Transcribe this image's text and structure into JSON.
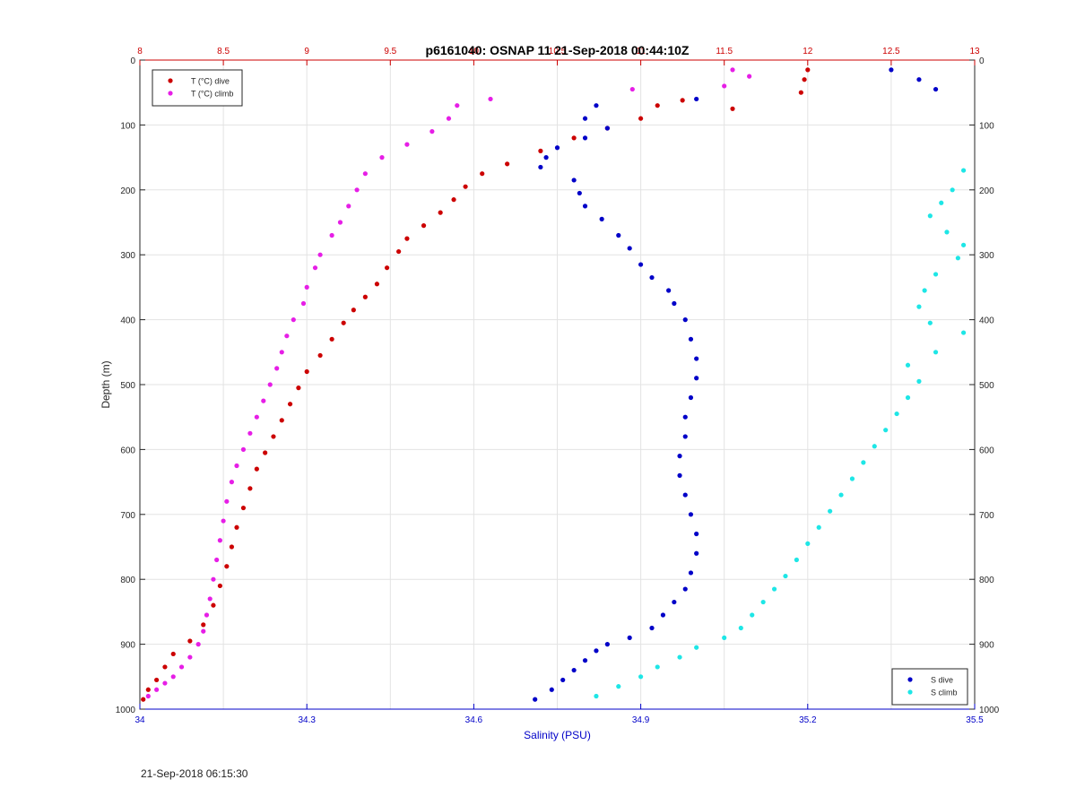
{
  "chart_data": {
    "type": "scatter",
    "title": "p6161040: OSNAP 11 21-Sep-2018 00:44:10Z",
    "ylabel": "Depth (m)",
    "xlabel_bottom": "Salinity (PSU)",
    "xlabel_top": "",
    "ylim": [
      0,
      1000
    ],
    "y_reversed": true,
    "y_ticks": [
      "0",
      "100",
      "200",
      "300",
      "400",
      "500",
      "600",
      "700",
      "800",
      "900",
      "1000"
    ],
    "xlim_top": [
      8,
      13
    ],
    "x_ticks_top": [
      "8",
      "8.5",
      "9",
      "9.5",
      "10",
      "10.5",
      "11",
      "11.5",
      "12",
      "12.5",
      "13"
    ],
    "xlim_bottom": [
      34,
      35.5
    ],
    "x_ticks_bottom": [
      "34",
      "34.3",
      "34.6",
      "34.9",
      "35.2",
      "35.5"
    ],
    "grid": true,
    "legends": [
      {
        "position": "top-left",
        "entries": [
          {
            "label": "T (°C) dive",
            "color": "#cc0000"
          },
          {
            "label": "T (°C) climb",
            "color": "#e61ee6"
          }
        ]
      },
      {
        "position": "bottom-right",
        "entries": [
          {
            "label": "S dive",
            "color": "#0000c8"
          },
          {
            "label": "S climb",
            "color": "#1ee6e6"
          }
        ]
      }
    ],
    "series": [
      {
        "name": "T (°C) dive",
        "axis": "top",
        "color": "#cc0000",
        "points": [
          [
            12.0,
            15
          ],
          [
            11.98,
            30
          ],
          [
            11.96,
            50
          ],
          [
            11.55,
            75
          ],
          [
            11.1,
            70
          ],
          [
            11.25,
            62
          ],
          [
            11.0,
            90
          ],
          [
            10.8,
            105
          ],
          [
            10.6,
            120
          ],
          [
            10.4,
            140
          ],
          [
            10.2,
            160
          ],
          [
            10.05,
            175
          ],
          [
            9.95,
            195
          ],
          [
            9.88,
            215
          ],
          [
            9.8,
            235
          ],
          [
            9.7,
            255
          ],
          [
            9.6,
            275
          ],
          [
            9.55,
            295
          ],
          [
            9.48,
            320
          ],
          [
            9.42,
            345
          ],
          [
            9.35,
            365
          ],
          [
            9.28,
            385
          ],
          [
            9.22,
            405
          ],
          [
            9.15,
            430
          ],
          [
            9.08,
            455
          ],
          [
            9.0,
            480
          ],
          [
            8.95,
            505
          ],
          [
            8.9,
            530
          ],
          [
            8.85,
            555
          ],
          [
            8.8,
            580
          ],
          [
            8.75,
            605
          ],
          [
            8.7,
            630
          ],
          [
            8.66,
            660
          ],
          [
            8.62,
            690
          ],
          [
            8.58,
            720
          ],
          [
            8.55,
            750
          ],
          [
            8.52,
            780
          ],
          [
            8.48,
            810
          ],
          [
            8.44,
            840
          ],
          [
            8.38,
            870
          ],
          [
            8.3,
            895
          ],
          [
            8.2,
            915
          ],
          [
            8.15,
            935
          ],
          [
            8.1,
            955
          ],
          [
            8.05,
            970
          ],
          [
            8.02,
            985
          ]
        ]
      },
      {
        "name": "T (°C) climb",
        "axis": "top",
        "color": "#e61ee6",
        "points": [
          [
            11.55,
            15
          ],
          [
            11.65,
            25
          ],
          [
            11.5,
            40
          ],
          [
            10.95,
            45
          ],
          [
            10.1,
            60
          ],
          [
            9.9,
            70
          ],
          [
            9.85,
            90
          ],
          [
            9.75,
            110
          ],
          [
            9.6,
            130
          ],
          [
            9.45,
            150
          ],
          [
            9.35,
            175
          ],
          [
            9.3,
            200
          ],
          [
            9.25,
            225
          ],
          [
            9.2,
            250
          ],
          [
            9.15,
            270
          ],
          [
            9.08,
            300
          ],
          [
            9.05,
            320
          ],
          [
            9.0,
            350
          ],
          [
            8.98,
            375
          ],
          [
            8.92,
            400
          ],
          [
            8.88,
            425
          ],
          [
            8.85,
            450
          ],
          [
            8.82,
            475
          ],
          [
            8.78,
            500
          ],
          [
            8.74,
            525
          ],
          [
            8.7,
            550
          ],
          [
            8.66,
            575
          ],
          [
            8.62,
            600
          ],
          [
            8.58,
            625
          ],
          [
            8.55,
            650
          ],
          [
            8.52,
            680
          ],
          [
            8.5,
            710
          ],
          [
            8.48,
            740
          ],
          [
            8.46,
            770
          ],
          [
            8.44,
            800
          ],
          [
            8.42,
            830
          ],
          [
            8.4,
            855
          ],
          [
            8.38,
            880
          ],
          [
            8.35,
            900
          ],
          [
            8.3,
            920
          ],
          [
            8.25,
            935
          ],
          [
            8.2,
            950
          ],
          [
            8.15,
            960
          ],
          [
            8.1,
            970
          ],
          [
            8.05,
            980
          ]
        ]
      },
      {
        "name": "S dive",
        "axis": "bottom",
        "color": "#0000c8",
        "points": [
          [
            35.35,
            15
          ],
          [
            35.4,
            30
          ],
          [
            35.43,
            45
          ],
          [
            35.0,
            60
          ],
          [
            34.82,
            70
          ],
          [
            34.8,
            90
          ],
          [
            34.84,
            105
          ],
          [
            34.8,
            120
          ],
          [
            34.75,
            135
          ],
          [
            34.73,
            150
          ],
          [
            34.72,
            165
          ],
          [
            34.78,
            185
          ],
          [
            34.79,
            205
          ],
          [
            34.8,
            225
          ],
          [
            34.83,
            245
          ],
          [
            34.86,
            270
          ],
          [
            34.88,
            290
          ],
          [
            34.9,
            315
          ],
          [
            34.92,
            335
          ],
          [
            34.95,
            355
          ],
          [
            34.96,
            375
          ],
          [
            34.98,
            400
          ],
          [
            34.99,
            430
          ],
          [
            35.0,
            460
          ],
          [
            35.0,
            490
          ],
          [
            34.99,
            520
          ],
          [
            34.98,
            550
          ],
          [
            34.98,
            580
          ],
          [
            34.97,
            610
          ],
          [
            34.97,
            640
          ],
          [
            34.98,
            670
          ],
          [
            34.99,
            700
          ],
          [
            35.0,
            730
          ],
          [
            35.0,
            760
          ],
          [
            34.99,
            790
          ],
          [
            34.98,
            815
          ],
          [
            34.96,
            835
          ],
          [
            34.94,
            855
          ],
          [
            34.92,
            875
          ],
          [
            34.88,
            890
          ],
          [
            34.84,
            900
          ],
          [
            34.82,
            910
          ],
          [
            34.8,
            925
          ],
          [
            34.78,
            940
          ],
          [
            34.76,
            955
          ],
          [
            34.74,
            970
          ],
          [
            34.71,
            985
          ]
        ]
      },
      {
        "name": "S climb",
        "axis": "bottom",
        "color": "#1ee6e6",
        "points": [
          [
            35.48,
            170
          ],
          [
            35.46,
            200
          ],
          [
            35.44,
            220
          ],
          [
            35.42,
            240
          ],
          [
            35.45,
            265
          ],
          [
            35.48,
            285
          ],
          [
            35.47,
            305
          ],
          [
            35.43,
            330
          ],
          [
            35.41,
            355
          ],
          [
            35.4,
            380
          ],
          [
            35.42,
            405
          ],
          [
            35.48,
            420
          ],
          [
            35.43,
            450
          ],
          [
            35.38,
            470
          ],
          [
            35.4,
            495
          ],
          [
            35.38,
            520
          ],
          [
            35.36,
            545
          ],
          [
            35.34,
            570
          ],
          [
            35.32,
            595
          ],
          [
            35.3,
            620
          ],
          [
            35.28,
            645
          ],
          [
            35.26,
            670
          ],
          [
            35.24,
            695
          ],
          [
            35.22,
            720
          ],
          [
            35.2,
            745
          ],
          [
            35.18,
            770
          ],
          [
            35.16,
            795
          ],
          [
            35.14,
            815
          ],
          [
            35.12,
            835
          ],
          [
            35.1,
            855
          ],
          [
            35.08,
            875
          ],
          [
            35.05,
            890
          ],
          [
            35.0,
            905
          ],
          [
            34.97,
            920
          ],
          [
            34.93,
            935
          ],
          [
            34.9,
            950
          ],
          [
            34.86,
            965
          ],
          [
            34.82,
            980
          ]
        ]
      }
    ]
  },
  "footer": {
    "timestamp": "21-Sep-2018 06:15:30"
  }
}
